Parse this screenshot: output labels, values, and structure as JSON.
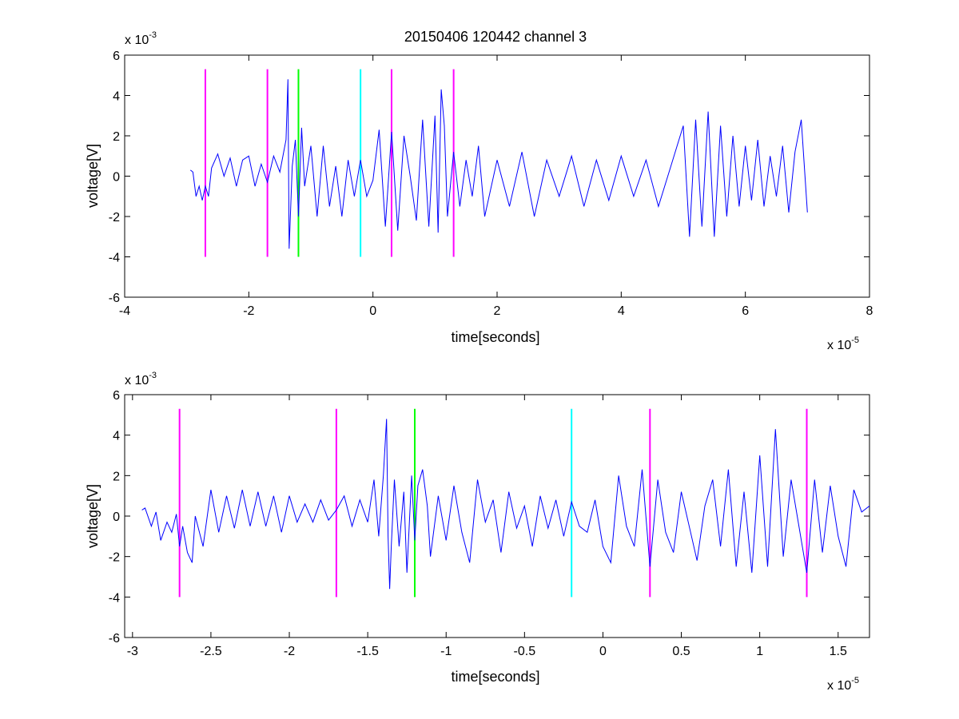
{
  "figure": {
    "title": "20150406 120442 channel 3",
    "colors": {
      "trace": "#0000ff",
      "magenta": "#ff00ff",
      "green": "#00ff00",
      "cyan": "#00ffff"
    }
  },
  "chart_data": [
    {
      "type": "line",
      "title": "20150406 120442 channel 3",
      "xlabel": "time[seconds]",
      "ylabel": "voltage[V]",
      "x_exponent_label": "x 10",
      "x_exponent": "-5",
      "y_exponent_label": "x 10",
      "y_exponent": "-3",
      "xlim": [
        -4,
        8
      ],
      "ylim": [
        -6,
        6
      ],
      "x_ticks": [
        -4,
        -2,
        0,
        2,
        4,
        6,
        8
      ],
      "x_tick_labels": [
        "-4",
        "-2",
        "0",
        "2",
        "4",
        "6",
        "8"
      ],
      "y_ticks": [
        -6,
        -4,
        -2,
        0,
        2,
        4,
        6
      ],
      "y_tick_labels": [
        "-6",
        "-4",
        "-2",
        "0",
        "2",
        "4",
        "6"
      ],
      "grid": false,
      "series": [
        {
          "color": "#0000ff",
          "x": [
            -2.94,
            -2.9,
            -2.85,
            -2.8,
            -2.75,
            -2.7,
            -2.65,
            -2.6,
            -2.5,
            -2.4,
            -2.3,
            -2.2,
            -2.1,
            -2.0,
            -1.9,
            -1.8,
            -1.7,
            -1.6,
            -1.5,
            -1.4,
            -1.37,
            -1.35,
            -1.3,
            -1.25,
            -1.2,
            -1.15,
            -1.1,
            -1.0,
            -0.9,
            -0.8,
            -0.7,
            -0.6,
            -0.5,
            -0.4,
            -0.3,
            -0.2,
            -0.1,
            0.0,
            0.1,
            0.2,
            0.3,
            0.4,
            0.5,
            0.6,
            0.7,
            0.8,
            0.9,
            1.0,
            1.05,
            1.1,
            1.15,
            1.2,
            1.3,
            1.4,
            1.5,
            1.6,
            1.7,
            1.8,
            2.0,
            2.2,
            2.4,
            2.6,
            2.8,
            3.0,
            3.2,
            3.4,
            3.6,
            3.8,
            4.0,
            4.2,
            4.4,
            4.6,
            4.8,
            5.0,
            5.1,
            5.2,
            5.3,
            5.4,
            5.5,
            5.6,
            5.7,
            5.8,
            5.9,
            6.0,
            6.1,
            6.2,
            6.3,
            6.4,
            6.5,
            6.6,
            6.7,
            6.8,
            6.9,
            7.0
          ],
          "y": [
            0.3,
            0.2,
            -1.0,
            -0.5,
            -1.2,
            -0.5,
            -1.0,
            0.4,
            1.1,
            0.0,
            0.9,
            -0.5,
            0.8,
            1.0,
            -0.5,
            0.6,
            -0.3,
            1.0,
            0.2,
            1.8,
            4.8,
            -3.6,
            0.5,
            1.8,
            -2.0,
            2.4,
            -0.5,
            1.5,
            -2.0,
            1.5,
            -1.5,
            0.5,
            -2.0,
            0.8,
            -1.0,
            0.8,
            -1.0,
            -0.2,
            2.3,
            -2.5,
            2.2,
            -2.7,
            2.0,
            0.0,
            -2.2,
            2.8,
            -2.5,
            3.0,
            -2.8,
            4.3,
            2.5,
            -2.0,
            1.2,
            -1.5,
            0.8,
            -1.0,
            1.5,
            -2.0,
            0.8,
            -1.5,
            1.2,
            -2.0,
            0.8,
            -1.0,
            1.0,
            -1.5,
            0.8,
            -1.2,
            1.0,
            -1.0,
            0.8,
            -1.5,
            0.5,
            2.5,
            -3.0,
            2.8,
            -2.5,
            3.2,
            -3.0,
            2.5,
            -2.0,
            2.0,
            -1.5,
            1.5,
            -1.2,
            1.8,
            -1.5,
            1.0,
            -1.0,
            1.5,
            -1.8,
            1.2,
            2.8,
            -1.8
          ]
        }
      ],
      "markers": [
        {
          "x": -2.7,
          "color": "#ff00ff"
        },
        {
          "x": -1.7,
          "color": "#ff00ff"
        },
        {
          "x": -1.2,
          "color": "#00ff00"
        },
        {
          "x": -0.2,
          "color": "#00ffff"
        },
        {
          "x": 0.3,
          "color": "#ff00ff"
        },
        {
          "x": 1.3,
          "color": "#ff00ff"
        }
      ],
      "marker_ylim": [
        -4,
        5.3
      ]
    },
    {
      "type": "line",
      "title": "",
      "xlabel": "time[seconds]",
      "ylabel": "voltage[V]",
      "x_exponent_label": "x 10",
      "x_exponent": "-5",
      "y_exponent_label": "x 10",
      "y_exponent": "-3",
      "xlim": [
        -3.05,
        1.7
      ],
      "ylim": [
        -6,
        6
      ],
      "x_ticks": [
        -3,
        -2.5,
        -2,
        -1.5,
        -1,
        -0.5,
        0,
        0.5,
        1,
        1.5
      ],
      "x_tick_labels": [
        "-3",
        "-2.5",
        "-2",
        "-1.5",
        "-1",
        "-0.5",
        "0",
        "0.5",
        "1",
        "1.5"
      ],
      "y_ticks": [
        -6,
        -4,
        -2,
        0,
        2,
        4,
        6
      ],
      "y_tick_labels": [
        "-6",
        "-4",
        "-2",
        "0",
        "2",
        "4",
        "6"
      ],
      "grid": false,
      "series": [
        {
          "color": "#0000ff",
          "x": [
            -2.94,
            -2.92,
            -2.88,
            -2.85,
            -2.82,
            -2.78,
            -2.75,
            -2.72,
            -2.7,
            -2.68,
            -2.65,
            -2.62,
            -2.6,
            -2.55,
            -2.5,
            -2.45,
            -2.4,
            -2.35,
            -2.3,
            -2.25,
            -2.2,
            -2.15,
            -2.1,
            -2.05,
            -2.0,
            -1.95,
            -1.9,
            -1.85,
            -1.8,
            -1.75,
            -1.7,
            -1.65,
            -1.6,
            -1.55,
            -1.5,
            -1.46,
            -1.43,
            -1.4,
            -1.38,
            -1.37,
            -1.36,
            -1.35,
            -1.33,
            -1.3,
            -1.27,
            -1.25,
            -1.22,
            -1.2,
            -1.18,
            -1.15,
            -1.12,
            -1.1,
            -1.05,
            -1.0,
            -0.95,
            -0.9,
            -0.85,
            -0.8,
            -0.75,
            -0.7,
            -0.65,
            -0.6,
            -0.55,
            -0.5,
            -0.45,
            -0.4,
            -0.35,
            -0.3,
            -0.25,
            -0.2,
            -0.15,
            -0.1,
            -0.05,
            0.0,
            0.05,
            0.1,
            0.15,
            0.2,
            0.25,
            0.3,
            0.35,
            0.4,
            0.45,
            0.5,
            0.55,
            0.6,
            0.65,
            0.7,
            0.75,
            0.8,
            0.85,
            0.9,
            0.95,
            1.0,
            1.05,
            1.1,
            1.15,
            1.2,
            1.25,
            1.3,
            1.35,
            1.4,
            1.45,
            1.5,
            1.55,
            1.6,
            1.65,
            1.7
          ],
          "y": [
            0.3,
            0.4,
            -0.5,
            0.2,
            -1.2,
            -0.3,
            -0.8,
            0.1,
            -1.5,
            -0.5,
            -1.8,
            -2.3,
            0.0,
            -1.5,
            1.3,
            -0.8,
            1.0,
            -0.6,
            1.3,
            -0.5,
            1.2,
            -0.5,
            1.0,
            -0.8,
            1.0,
            -0.3,
            0.6,
            -0.3,
            0.8,
            -0.2,
            0.3,
            1.0,
            -0.5,
            0.8,
            -0.3,
            1.8,
            -1.0,
            2.0,
            4.8,
            -1.0,
            -3.6,
            -1.5,
            1.8,
            -1.5,
            1.2,
            -2.8,
            2.0,
            -1.2,
            1.5,
            2.3,
            0.5,
            -2.0,
            1.0,
            -1.2,
            1.5,
            -0.8,
            -2.3,
            1.8,
            -0.3,
            0.8,
            -1.8,
            1.2,
            -0.6,
            0.5,
            -1.5,
            1.0,
            -0.6,
            0.8,
            -1.0,
            0.7,
            -0.5,
            -0.8,
            0.8,
            -1.5,
            -2.3,
            2.0,
            -0.5,
            -1.5,
            2.3,
            -2.5,
            1.8,
            -0.8,
            -1.8,
            1.2,
            -0.5,
            -2.2,
            0.5,
            1.8,
            -1.5,
            2.3,
            -2.5,
            1.2,
            -2.8,
            3.0,
            -2.5,
            4.3,
            -2.0,
            1.8,
            -0.5,
            -2.8,
            1.8,
            -1.8,
            1.5,
            -1.0,
            -2.5,
            1.3,
            0.2,
            0.5
          ]
        }
      ],
      "markers": [
        {
          "x": -2.7,
          "color": "#ff00ff"
        },
        {
          "x": -1.7,
          "color": "#ff00ff"
        },
        {
          "x": -1.2,
          "color": "#00ff00"
        },
        {
          "x": -0.2,
          "color": "#00ffff"
        },
        {
          "x": 0.3,
          "color": "#ff00ff"
        },
        {
          "x": 1.3,
          "color": "#ff00ff"
        }
      ],
      "marker_ylim": [
        -4,
        5.3
      ]
    }
  ]
}
